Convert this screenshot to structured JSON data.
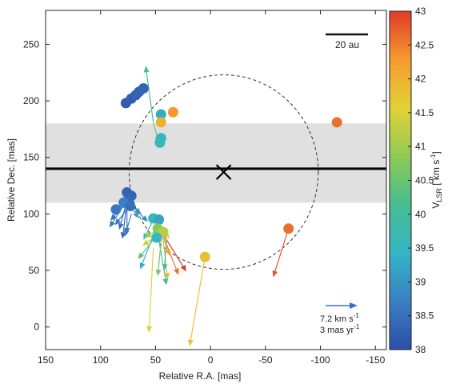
{
  "chart_data": {
    "type": "scatter",
    "title": "",
    "xlabel": "Relative R.A. [mas]",
    "ylabel": "Relative Dec. [mas]",
    "xlim": [
      150,
      -160
    ],
    "ylim": [
      -20,
      280
    ],
    "x_ticks": [
      150,
      100,
      50,
      0,
      -50,
      -100,
      -150
    ],
    "y_ticks": [
      0,
      50,
      100,
      150,
      200,
      250
    ],
    "x_tick_labels": [
      "150",
      "100",
      "50",
      "0",
      "-50",
      "-100",
      "-150"
    ],
    "y_tick_labels": [
      "0",
      "50",
      "100",
      "150",
      "200",
      "250"
    ],
    "grid": false,
    "colorbar": {
      "label": "V_LSR [km s^-1]",
      "label_main": "V",
      "label_sub": "LSR",
      "label_unit": "[ km s",
      "label_unit_sup": "-1",
      "label_close": "]",
      "min": 38,
      "max": 43,
      "ticks": [
        "38",
        "38.5",
        "39",
        "39.5",
        "40",
        "40.5",
        "41",
        "41.5",
        "42",
        "42.5",
        "43"
      ],
      "colormap": [
        "#2e4ea8",
        "#3a7fc4",
        "#34b6c4",
        "#47bd8f",
        "#8fca55",
        "#e3d236",
        "#f59a2f",
        "#e03b2a"
      ]
    },
    "band": {
      "y_from": 110,
      "y_to": 180,
      "color": "#e0e0e0"
    },
    "line_y": 140,
    "center": {
      "x": -12,
      "y": 137
    },
    "circle": {
      "center_x": -12,
      "center_y": 137,
      "radius": 86
    },
    "scale_bar": {
      "label": "20 au"
    },
    "reference_arrow": {
      "label_line1": "7.2 km s",
      "label_line1_sup": "-1",
      "label_line2": "3 mas yr",
      "label_line2_sup": "-1",
      "color": "#3a6fc0"
    },
    "points": [
      {
        "x": 77,
        "y": 198,
        "v": 38.2
      },
      {
        "x": 72,
        "y": 202,
        "v": 38.2
      },
      {
        "x": 68,
        "y": 205,
        "v": 38.3
      },
      {
        "x": 65,
        "y": 208,
        "v": 38.3
      },
      {
        "x": 61,
        "y": 211,
        "v": 38.3
      },
      {
        "x": 45,
        "y": 188,
        "v": 39.3
      },
      {
        "x": 34,
        "y": 190,
        "v": 42.3
      },
      {
        "x": 45,
        "y": 181,
        "v": 42.0
      },
      {
        "x": 45,
        "y": 167,
        "v": 39.4
      },
      {
        "x": 46,
        "y": 163,
        "v": 39.6
      },
      {
        "x": -115,
        "y": 181,
        "v": 42.6
      },
      {
        "x": 76,
        "y": 119,
        "v": 38.3
      },
      {
        "x": 72,
        "y": 116,
        "v": 38.3
      },
      {
        "x": 75,
        "y": 112,
        "v": 38.4
      },
      {
        "x": 79,
        "y": 110,
        "v": 38.7
      },
      {
        "x": 73,
        "y": 107,
        "v": 38.5
      },
      {
        "x": 86,
        "y": 104,
        "v": 38.6
      },
      {
        "x": 52,
        "y": 96,
        "v": 39.6
      },
      {
        "x": 47,
        "y": 95,
        "v": 39.2
      },
      {
        "x": 48,
        "y": 87,
        "v": 40.8
      },
      {
        "x": 43,
        "y": 84,
        "v": 41.2
      },
      {
        "x": 49,
        "y": 79,
        "v": 39.5
      },
      {
        "x": -71,
        "y": 87,
        "v": 42.6
      },
      {
        "x": 5,
        "y": 62,
        "v": 41.8
      }
    ],
    "vectors": [
      {
        "x": 52,
        "y": 181,
        "dx": 7,
        "dy": 50,
        "v": 40.1
      },
      {
        "x": 52,
        "y": 181,
        "dx": -5,
        "dy": -19,
        "v": 40.5
      },
      {
        "x": -71,
        "y": 87,
        "dx": 14,
        "dy": -43,
        "v": 42.8
      },
      {
        "x": 5,
        "y": 62,
        "dx": 14,
        "dy": -79,
        "v": 41.8
      },
      {
        "x": 52,
        "y": 70,
        "dx": 4,
        "dy": -75,
        "v": 41.6
      },
      {
        "x": 76,
        "y": 112,
        "dx": 15,
        "dy": -18,
        "v": 38.5
      },
      {
        "x": 76,
        "y": 112,
        "dx": 7,
        "dy": -26,
        "v": 38.5
      },
      {
        "x": 76,
        "y": 112,
        "dx": 0,
        "dy": -30,
        "v": 38.5
      },
      {
        "x": 76,
        "y": 112,
        "dx": 4,
        "dy": -34,
        "v": 38.4
      },
      {
        "x": 76,
        "y": 112,
        "dx": 16,
        "dy": -24,
        "v": 38.6
      },
      {
        "x": 75,
        "y": 110,
        "dx": -10,
        "dy": -14,
        "v": 39.1
      },
      {
        "x": 75,
        "y": 110,
        "dx": -12,
        "dy": -10,
        "v": 39.0
      },
      {
        "x": 72,
        "y": 108,
        "dx": -15,
        "dy": -15,
        "v": 38.9
      },
      {
        "x": 73,
        "y": 108,
        "dx": 14,
        "dy": -18,
        "v": 38.6
      },
      {
        "x": 72,
        "y": 100,
        "dx": 6,
        "dy": -20,
        "v": 38.7
      },
      {
        "x": 52,
        "y": 95,
        "dx": 9,
        "dy": -18,
        "v": 40.0
      },
      {
        "x": 50,
        "y": 86,
        "dx": 14,
        "dy": -35,
        "v": 39.3
      },
      {
        "x": 48,
        "y": 83,
        "dx": -8,
        "dy": -46,
        "v": 39.8
      },
      {
        "x": 44,
        "y": 85,
        "dx": 4,
        "dy": -40,
        "v": 40.6
      },
      {
        "x": 44,
        "y": 86,
        "dx": -5,
        "dy": -44,
        "v": 41.9
      },
      {
        "x": 45,
        "y": 85,
        "dx": -16,
        "dy": -39,
        "v": 42.6
      },
      {
        "x": 45,
        "y": 85,
        "dx": -23,
        "dy": -36,
        "v": 43.0
      },
      {
        "x": 45,
        "y": 85,
        "dx": -8,
        "dy": -22,
        "v": 42.2
      },
      {
        "x": 47,
        "y": 90,
        "dx": -10,
        "dy": -12,
        "v": 41.5
      },
      {
        "x": 50,
        "y": 85,
        "dx": 10,
        "dy": -6,
        "v": 41.0
      },
      {
        "x": 48,
        "y": 82,
        "dx": 18,
        "dy": -22,
        "v": 40.4
      },
      {
        "x": 50,
        "y": 80,
        "dx": 12,
        "dy": -8,
        "v": 41.4
      },
      {
        "x": 40,
        "y": 78,
        "dx": 2,
        "dy": -28,
        "v": 40.0
      }
    ]
  }
}
